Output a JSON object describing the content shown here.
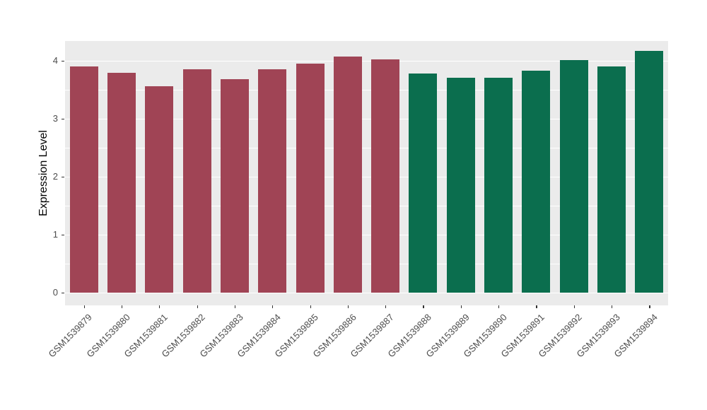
{
  "chart_data": {
    "type": "bar",
    "title": "",
    "xlabel": "",
    "ylabel": "Expression Level",
    "categories": [
      "GSM1539879",
      "GSM1539880",
      "GSM1539881",
      "GSM1539882",
      "GSM1539883",
      "GSM1539884",
      "GSM1539885",
      "GSM1539886",
      "GSM1539887",
      "GSM1539888",
      "GSM1539889",
      "GSM1539890",
      "GSM1539891",
      "GSM1539892",
      "GSM1539893",
      "GSM1539894"
    ],
    "values": [
      3.9,
      3.79,
      3.56,
      3.85,
      3.68,
      3.85,
      3.95,
      4.07,
      4.02,
      3.78,
      3.7,
      3.7,
      3.83,
      4.01,
      3.9,
      4.17
    ],
    "bar_colors": [
      "#A04455",
      "#A04455",
      "#A04455",
      "#A04455",
      "#A04455",
      "#A04455",
      "#A04455",
      "#A04455",
      "#A04455",
      "#0B6E4E",
      "#0B6E4E",
      "#0B6E4E",
      "#0B6E4E",
      "#0B6E4E",
      "#0B6E4E",
      "#0B6E4E"
    ],
    "palette": {
      "maroon": "#A04455",
      "green": "#0B6E4E"
    },
    "yticks": [
      "0",
      "1",
      "2",
      "3",
      "4"
    ],
    "ytick_values": [
      0,
      1,
      2,
      3,
      4
    ],
    "minor_ytick_values": [
      0.5,
      1.5,
      2.5,
      3.5
    ],
    "ylim": [
      -0.22,
      4.34
    ],
    "grid": "on",
    "legend": "none",
    "panel_background": "#EBEBEB",
    "gridline_color": "#FFFFFF",
    "axis_text_color": "#4D4D4D"
  }
}
